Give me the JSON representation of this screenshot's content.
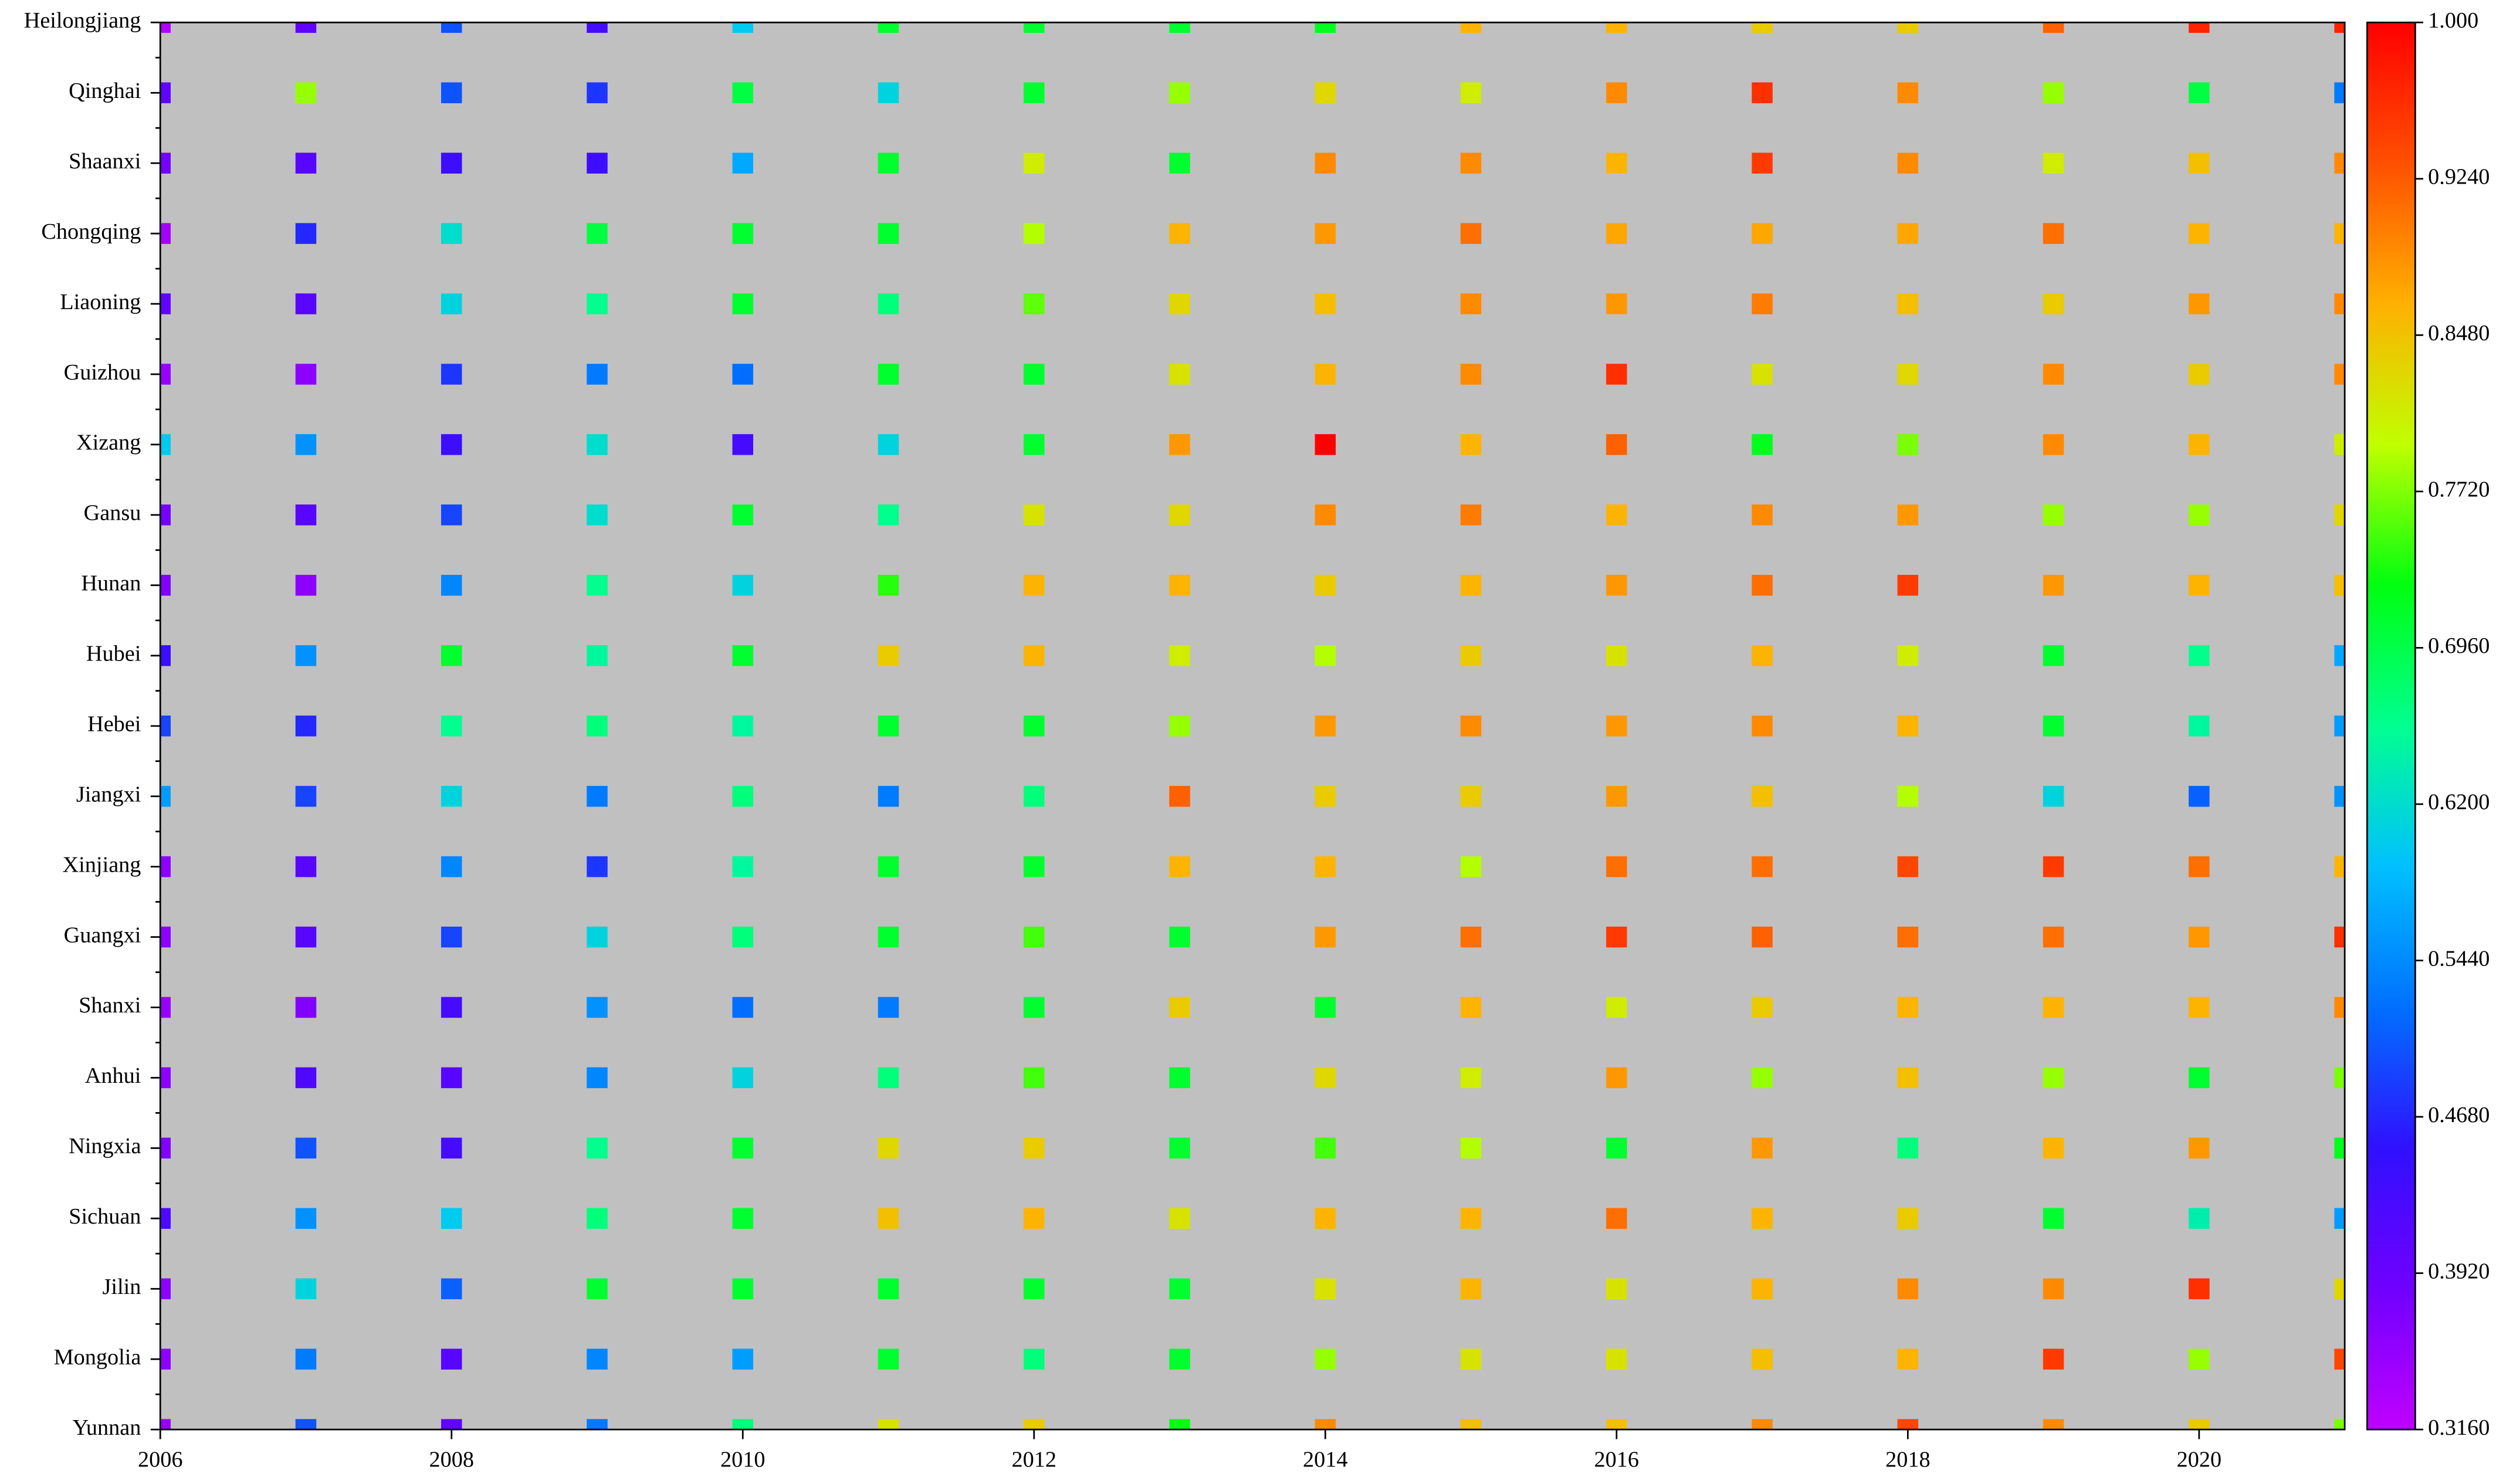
{
  "chart_data": {
    "type": "heatmap",
    "x": [
      2006,
      2007,
      2008,
      2009,
      2010,
      2011,
      2012,
      2013,
      2014,
      2015,
      2016,
      2017,
      2018,
      2019,
      2020,
      2021
    ],
    "xlim": [
      2006,
      2021
    ],
    "xticks": [
      2006,
      2008,
      2010,
      2012,
      2014,
      2016,
      2018,
      2020
    ],
    "categories": [
      "Heilongjiang",
      "Qinghai",
      "Shaanxi",
      "Chongqing",
      "Liaoning",
      "Guizhou",
      "Xizang",
      "Gansu",
      "Hunan",
      "Hubei",
      "Hebei",
      "Jiangxi",
      "Xinjiang",
      "Guangxi",
      "Shanxi",
      "Anhui",
      "Ningxia",
      "Sichuan",
      "Jilin",
      "Mongolia",
      "Yunnan"
    ],
    "z": [
      [
        0.33,
        0.4,
        0.5,
        0.43,
        0.6,
        0.71,
        0.71,
        0.71,
        0.72,
        0.86,
        0.86,
        0.84,
        0.84,
        0.92,
        0.97,
        0.97
      ],
      [
        0.4,
        0.78,
        0.5,
        0.48,
        0.7,
        0.61,
        0.71,
        0.78,
        0.83,
        0.81,
        0.89,
        0.96,
        0.89,
        0.78,
        0.7,
        0.53
      ],
      [
        0.38,
        0.41,
        0.44,
        0.44,
        0.57,
        0.71,
        0.81,
        0.71,
        0.89,
        0.89,
        0.86,
        0.95,
        0.89,
        0.81,
        0.85,
        0.89
      ],
      [
        0.34,
        0.47,
        0.62,
        0.7,
        0.71,
        0.71,
        0.79,
        0.86,
        0.88,
        0.91,
        0.87,
        0.87,
        0.87,
        0.91,
        0.86,
        0.86
      ],
      [
        0.4,
        0.41,
        0.61,
        0.66,
        0.71,
        0.67,
        0.76,
        0.83,
        0.85,
        0.89,
        0.88,
        0.9,
        0.85,
        0.84,
        0.88,
        0.89
      ],
      [
        0.35,
        0.36,
        0.48,
        0.53,
        0.52,
        0.71,
        0.71,
        0.82,
        0.86,
        0.89,
        0.96,
        0.82,
        0.83,
        0.89,
        0.84,
        0.89
      ],
      [
        0.6,
        0.55,
        0.44,
        0.62,
        0.43,
        0.61,
        0.71,
        0.88,
        1.0,
        0.86,
        0.92,
        0.72,
        0.77,
        0.89,
        0.86,
        0.81
      ],
      [
        0.38,
        0.41,
        0.49,
        0.62,
        0.71,
        0.66,
        0.82,
        0.83,
        0.89,
        0.9,
        0.86,
        0.89,
        0.88,
        0.78,
        0.78,
        0.83
      ],
      [
        0.37,
        0.36,
        0.54,
        0.66,
        0.61,
        0.74,
        0.86,
        0.86,
        0.84,
        0.86,
        0.88,
        0.91,
        0.95,
        0.88,
        0.86,
        0.85
      ],
      [
        0.44,
        0.55,
        0.71,
        0.65,
        0.71,
        0.84,
        0.86,
        0.81,
        0.79,
        0.84,
        0.82,
        0.86,
        0.81,
        0.71,
        0.66,
        0.57
      ],
      [
        0.49,
        0.47,
        0.66,
        0.67,
        0.65,
        0.71,
        0.71,
        0.78,
        0.88,
        0.89,
        0.88,
        0.89,
        0.86,
        0.71,
        0.65,
        0.56
      ],
      [
        0.56,
        0.49,
        0.61,
        0.53,
        0.67,
        0.53,
        0.67,
        0.92,
        0.84,
        0.84,
        0.88,
        0.85,
        0.79,
        0.61,
        0.51,
        0.55
      ],
      [
        0.36,
        0.41,
        0.54,
        0.48,
        0.65,
        0.71,
        0.71,
        0.86,
        0.86,
        0.79,
        0.91,
        0.91,
        0.94,
        0.95,
        0.91,
        0.86
      ],
      [
        0.36,
        0.41,
        0.49,
        0.61,
        0.67,
        0.71,
        0.75,
        0.71,
        0.88,
        0.91,
        0.95,
        0.92,
        0.91,
        0.91,
        0.88,
        0.96
      ],
      [
        0.35,
        0.37,
        0.43,
        0.55,
        0.52,
        0.53,
        0.71,
        0.84,
        0.71,
        0.86,
        0.81,
        0.84,
        0.86,
        0.86,
        0.86,
        0.89
      ],
      [
        0.36,
        0.42,
        0.41,
        0.54,
        0.61,
        0.67,
        0.75,
        0.71,
        0.83,
        0.81,
        0.88,
        0.78,
        0.85,
        0.78,
        0.71,
        0.77
      ],
      [
        0.37,
        0.5,
        0.43,
        0.66,
        0.71,
        0.83,
        0.84,
        0.71,
        0.75,
        0.79,
        0.71,
        0.88,
        0.67,
        0.86,
        0.88,
        0.72
      ],
      [
        0.42,
        0.55,
        0.6,
        0.67,
        0.71,
        0.85,
        0.86,
        0.82,
        0.86,
        0.86,
        0.91,
        0.86,
        0.84,
        0.71,
        0.64,
        0.56
      ],
      [
        0.36,
        0.61,
        0.51,
        0.71,
        0.71,
        0.71,
        0.71,
        0.71,
        0.82,
        0.86,
        0.82,
        0.86,
        0.89,
        0.89,
        0.96,
        0.83
      ],
      [
        0.36,
        0.53,
        0.41,
        0.54,
        0.56,
        0.71,
        0.67,
        0.71,
        0.78,
        0.82,
        0.82,
        0.85,
        0.86,
        0.95,
        0.78,
        0.94
      ],
      [
        0.35,
        0.5,
        0.4,
        0.53,
        0.67,
        0.82,
        0.84,
        0.73,
        0.89,
        0.85,
        0.85,
        0.89,
        0.94,
        0.89,
        0.84,
        0.77
      ]
    ],
    "clim": [
      0.316,
      1.0
    ],
    "cticks": [
      {
        "value": 0.316,
        "label": "0.3160"
      },
      {
        "value": 0.392,
        "label": "0.3920"
      },
      {
        "value": 0.468,
        "label": "0.4680"
      },
      {
        "value": 0.544,
        "label": "0.5440"
      },
      {
        "value": 0.62,
        "label": "0.6200"
      },
      {
        "value": 0.696,
        "label": "0.6960"
      },
      {
        "value": 0.772,
        "label": "0.7720"
      },
      {
        "value": 0.848,
        "label": "0.8480"
      },
      {
        "value": 0.924,
        "label": "0.9240"
      },
      {
        "value": 1.0,
        "label": "1.000"
      }
    ],
    "colormap": [
      "#c000ff",
      "#7000ff",
      "#3010ff",
      "#0070ff",
      "#00c0ff",
      "#00ff90",
      "#00ff10",
      "#c0ff00",
      "#ffb000",
      "#ff5000",
      "#ff0000"
    ],
    "background": "#c0c0c0"
  }
}
